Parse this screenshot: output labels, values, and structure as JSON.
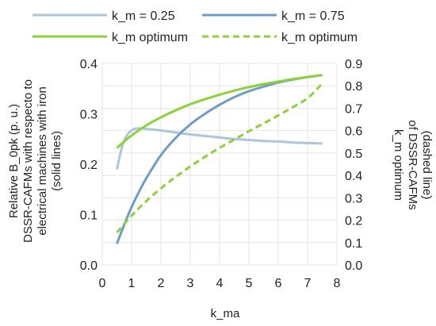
{
  "chart_data": {
    "type": "line",
    "xlabel": "k_ma",
    "ylabel_left": [
      "Relative B_0pk (p. u.)",
      "DSSR-CAFMs with respecto to",
      "electrical machines with iron",
      "(solid lines)"
    ],
    "ylabel_right": [
      "k_m optimum",
      "of DSSR-CAFMs",
      "(dashed line)"
    ],
    "xlim": [
      0,
      8
    ],
    "ylim_left": [
      0,
      0.4
    ],
    "ylim_right": [
      0,
      0.9
    ],
    "x_ticks": [
      "0",
      "1",
      "2",
      "3",
      "4",
      "5",
      "6",
      "7",
      "8"
    ],
    "y_ticks_left": [
      "0.0",
      "0.1",
      "0.2",
      "0.3",
      "0.4"
    ],
    "y_ticks_right": [
      "0.0",
      "0.1",
      "0.2",
      "0.3",
      "0.4",
      "0.5",
      "0.6",
      "0.7",
      "0.8",
      "0.9"
    ],
    "grid": true,
    "legend_position": "top",
    "series": [
      {
        "name": "k_m = 0.25",
        "axis": "left",
        "style": "solid",
        "color": "#adc6dc",
        "x": [
          0.5,
          0.7,
          0.9,
          1.1,
          1.3,
          1.5,
          2.0,
          2.5,
          3.0,
          3.5,
          4.0,
          4.5,
          5.0,
          5.5,
          6.0,
          6.5,
          7.0,
          7.5
        ],
        "y": [
          0.19,
          0.24,
          0.262,
          0.27,
          0.271,
          0.27,
          0.267,
          0.263,
          0.259,
          0.256,
          0.253,
          0.25,
          0.248,
          0.246,
          0.245,
          0.243,
          0.242,
          0.241
        ]
      },
      {
        "name": "k_m = 0.75",
        "axis": "left",
        "style": "solid",
        "color": "#6f9cc6",
        "x": [
          0.5,
          0.75,
          1.0,
          1.25,
          1.5,
          2.0,
          2.5,
          3.0,
          3.5,
          4.0,
          4.5,
          5.0,
          5.5,
          6.0,
          6.5,
          7.0,
          7.5
        ],
        "y": [
          0.042,
          0.08,
          0.115,
          0.145,
          0.172,
          0.218,
          0.252,
          0.279,
          0.3,
          0.318,
          0.333,
          0.345,
          0.354,
          0.362,
          0.368,
          0.373,
          0.377
        ]
      },
      {
        "name": "k_m optimum",
        "axis": "left",
        "style": "solid",
        "color": "#8cd13a",
        "x": [
          0.5,
          0.75,
          1.0,
          1.5,
          2.0,
          2.5,
          3.0,
          3.5,
          4.0,
          4.5,
          5.0,
          5.5,
          6.0,
          6.5,
          7.0,
          7.5
        ],
        "y": [
          0.232,
          0.245,
          0.257,
          0.277,
          0.293,
          0.307,
          0.319,
          0.329,
          0.338,
          0.346,
          0.353,
          0.359,
          0.364,
          0.369,
          0.373,
          0.377
        ]
      },
      {
        "name": "k_m optimum",
        "axis": "right",
        "style": "dashed",
        "color": "#8cd13a",
        "x": [
          0.5,
          1.0,
          1.5,
          2.0,
          2.5,
          3.0,
          3.5,
          4.0,
          4.5,
          5.0,
          5.5,
          6.0,
          6.5,
          7.0,
          7.5
        ],
        "y": [
          0.145,
          0.22,
          0.285,
          0.342,
          0.393,
          0.44,
          0.483,
          0.523,
          0.56,
          0.597,
          0.632,
          0.668,
          0.705,
          0.745,
          0.81
        ]
      }
    ]
  }
}
